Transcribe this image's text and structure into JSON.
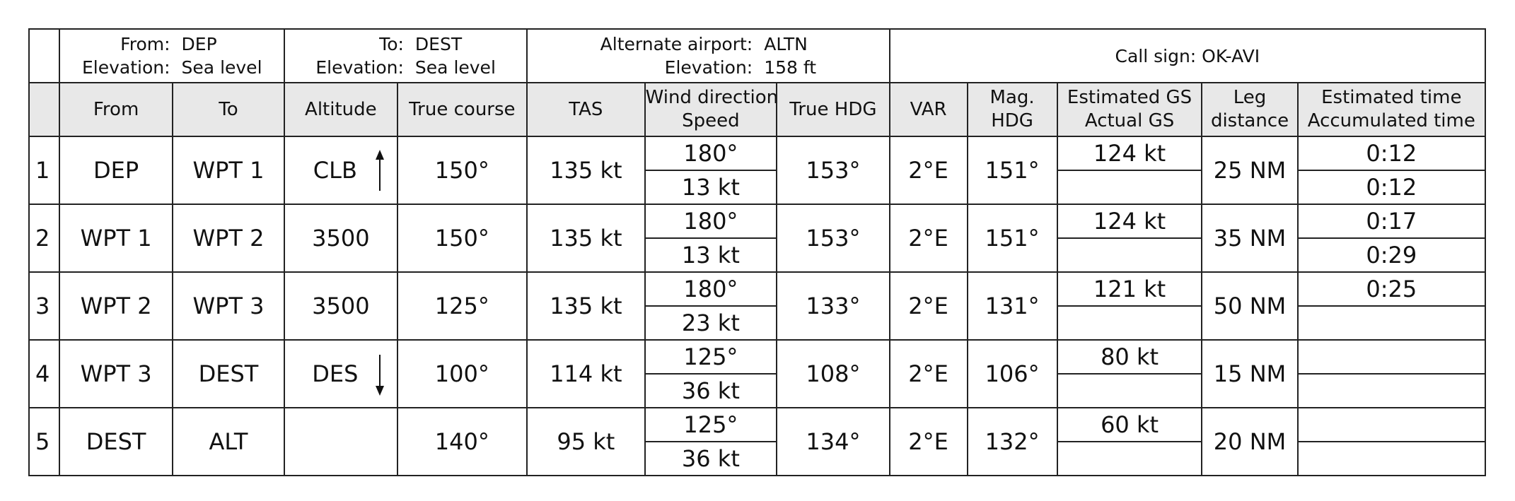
{
  "header": {
    "from_label": "From:",
    "from_value": "DEP",
    "from_elev_label": "Elevation:",
    "from_elev_value": "Sea level",
    "to_label": "To:",
    "to_value": "DEST",
    "to_elev_label": "Elevation:",
    "to_elev_value": "Sea level",
    "alt_label": "Alternate airport:",
    "alt_value": "ALTN",
    "alt_elev_label": "Elevation:",
    "alt_elev_value": "158 ft",
    "callsign": "Call sign: OK-AVI"
  },
  "columns": {
    "from": "From",
    "to": "To",
    "altitude": "Altitude",
    "true_course": "True course",
    "tas": "TAS",
    "wind_line1": "Wind direction",
    "wind_line2": "Speed",
    "true_hdg": "True HDG",
    "var": "VAR",
    "mag_line1": "Mag.",
    "mag_line2": "HDG",
    "gs_line1": "Estimated GS",
    "gs_line2": "Actual GS",
    "leg_line1": "Leg",
    "leg_line2": "distance",
    "time_line1": "Estimated time",
    "time_line2": "Accumulated time"
  },
  "rows": [
    {
      "n": "1",
      "from": "DEP",
      "to": "WPT 1",
      "altitude": "CLB",
      "altitude_arrow": "up",
      "true_course": "150°",
      "tas": "135 kt",
      "wind_dir": "180°",
      "wind_speed": "13 kt",
      "true_hdg": "153°",
      "var": "2°E",
      "mag_hdg": "151°",
      "est_gs": "124 kt",
      "act_gs": "",
      "leg_distance": "25 NM",
      "est_time": "0:12",
      "acc_time": "0:12"
    },
    {
      "n": "2",
      "from": "WPT 1",
      "to": "WPT 2",
      "altitude": "3500",
      "altitude_arrow": "",
      "true_course": "150°",
      "tas": "135 kt",
      "wind_dir": "180°",
      "wind_speed": "13 kt",
      "true_hdg": "153°",
      "var": "2°E",
      "mag_hdg": "151°",
      "est_gs": "124 kt",
      "act_gs": "",
      "leg_distance": "35 NM",
      "est_time": "0:17",
      "acc_time": "0:29"
    },
    {
      "n": "3",
      "from": "WPT 2",
      "to": "WPT 3",
      "altitude": "3500",
      "altitude_arrow": "",
      "true_course": "125°",
      "tas": "135 kt",
      "wind_dir": "180°",
      "wind_speed": "23 kt",
      "true_hdg": "133°",
      "var": "2°E",
      "mag_hdg": "131°",
      "est_gs": "121 kt",
      "act_gs": "",
      "leg_distance": "50 NM",
      "est_time": "0:25",
      "acc_time": ""
    },
    {
      "n": "4",
      "from": "WPT 3",
      "to": "DEST",
      "altitude": "DES",
      "altitude_arrow": "down",
      "true_course": "100°",
      "tas": "114 kt",
      "wind_dir": "125°",
      "wind_speed": "36 kt",
      "true_hdg": "108°",
      "var": "2°E",
      "mag_hdg": "106°",
      "est_gs": "80 kt",
      "act_gs": "",
      "leg_distance": "15 NM",
      "est_time": "",
      "acc_time": ""
    },
    {
      "n": "5",
      "from": "DEST",
      "to": "ALT",
      "altitude": "",
      "altitude_arrow": "",
      "true_course": "140°",
      "tas": "95 kt",
      "wind_dir": "125°",
      "wind_speed": "36 kt",
      "true_hdg": "134°",
      "var": "2°E",
      "mag_hdg": "132°",
      "est_gs": "60 kt",
      "act_gs": "",
      "leg_distance": "20 NM",
      "est_time": "",
      "acc_time": ""
    }
  ]
}
